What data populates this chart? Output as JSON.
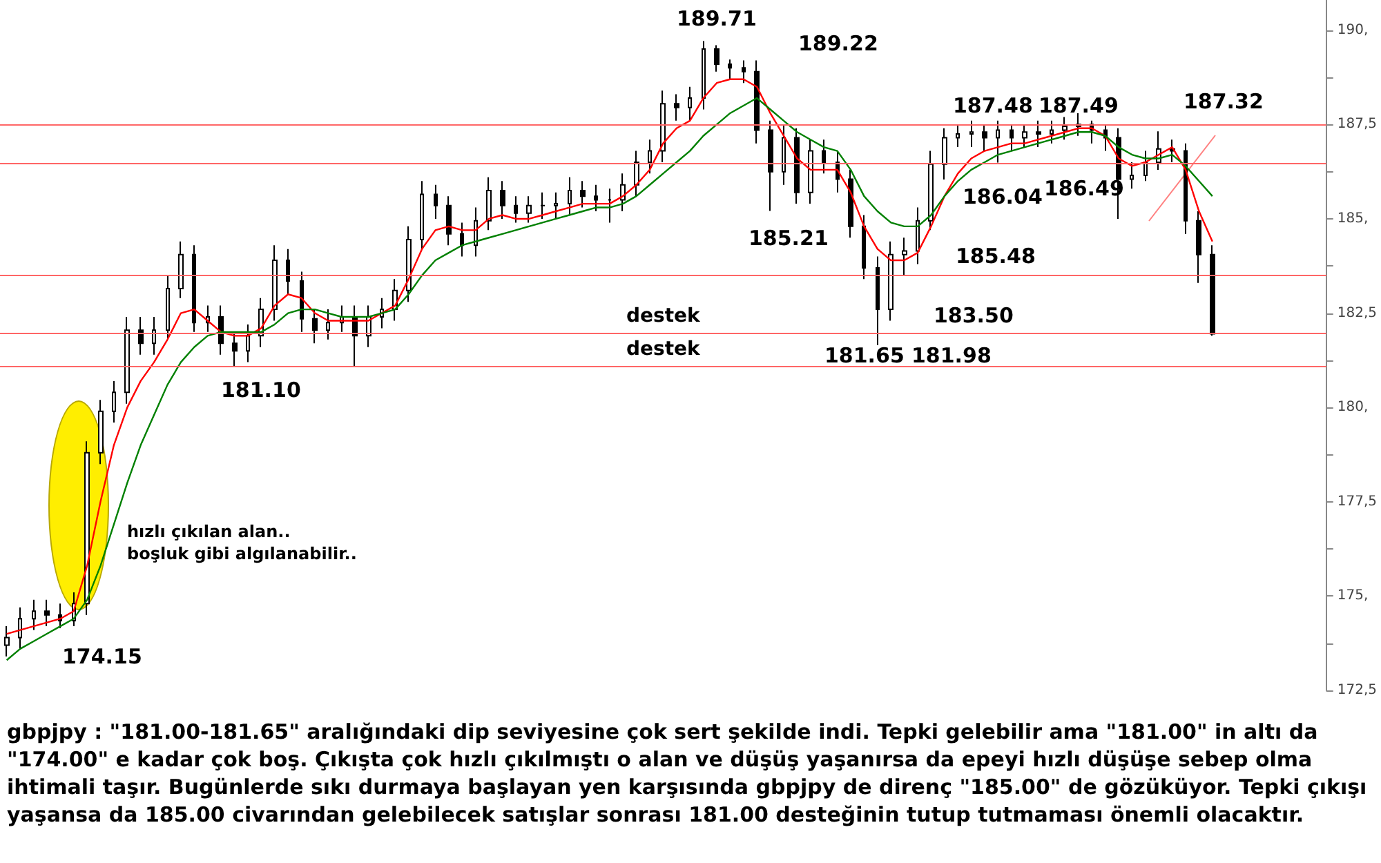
{
  "chart_data": {
    "type": "candlestick",
    "categories": [
      null,
      null,
      null,
      null,
      null,
      null,
      null,
      null,
      null,
      null,
      null,
      null,
      null,
      null,
      null,
      null,
      null,
      null,
      null,
      null,
      null,
      null,
      null,
      null,
      null,
      null,
      null,
      null,
      null,
      null,
      null,
      null,
      null,
      null,
      null,
      null,
      null,
      null,
      null,
      null,
      null,
      null,
      null,
      null,
      null,
      null,
      null,
      null,
      null,
      null,
      null,
      null,
      null,
      null,
      null,
      null,
      null,
      null,
      null,
      null,
      null,
      null,
      null,
      null,
      null,
      null,
      null,
      null,
      null,
      null,
      null,
      null,
      null,
      null,
      null,
      null,
      null,
      null,
      null,
      null,
      null,
      null,
      null,
      null,
      null,
      null,
      null,
      null,
      null,
      null,
      null,
      null,
      null,
      null,
      null,
      null,
      null,
      null,
      null
    ],
    "ohlc": [
      [
        173.7,
        174.2,
        173.4,
        173.9
      ],
      [
        173.9,
        174.7,
        173.6,
        174.4
      ],
      [
        174.4,
        174.9,
        174.1,
        174.6
      ],
      [
        174.6,
        174.9,
        174.2,
        174.5
      ],
      [
        174.5,
        174.8,
        174.15,
        174.35
      ],
      [
        174.35,
        175.1,
        174.2,
        174.8
      ],
      [
        174.8,
        179.1,
        174.5,
        178.8
      ],
      [
        178.8,
        180.2,
        178.5,
        179.9
      ],
      [
        179.9,
        180.7,
        179.6,
        180.4
      ],
      [
        180.4,
        182.4,
        180.1,
        182.05
      ],
      [
        182.05,
        182.4,
        181.4,
        181.7
      ],
      [
        181.7,
        182.4,
        181.4,
        182.05
      ],
      [
        182.05,
        183.5,
        181.8,
        183.15
      ],
      [
        183.15,
        184.4,
        182.9,
        184.05
      ],
      [
        184.05,
        184.3,
        182.0,
        182.25
      ],
      [
        182.25,
        182.7,
        182.0,
        182.4
      ],
      [
        182.4,
        182.7,
        181.4,
        181.7
      ],
      [
        181.7,
        182.0,
        181.1,
        181.5
      ],
      [
        181.5,
        182.2,
        181.2,
        181.9
      ],
      [
        181.9,
        182.9,
        181.6,
        182.6
      ],
      [
        182.6,
        184.3,
        182.3,
        183.9
      ],
      [
        183.9,
        184.2,
        183.0,
        183.35
      ],
      [
        183.35,
        183.6,
        182.0,
        182.35
      ],
      [
        182.35,
        182.6,
        181.7,
        182.05
      ],
      [
        182.05,
        182.6,
        181.8,
        182.25
      ],
      [
        182.25,
        182.7,
        182.0,
        182.4
      ],
      [
        182.4,
        182.7,
        181.1,
        181.9
      ],
      [
        181.9,
        182.7,
        181.6,
        182.4
      ],
      [
        182.4,
        182.9,
        182.1,
        182.6
      ],
      [
        182.6,
        183.4,
        182.3,
        183.1
      ],
      [
        183.1,
        184.8,
        182.8,
        184.45
      ],
      [
        184.45,
        186.0,
        184.2,
        185.65
      ],
      [
        185.65,
        185.9,
        185.0,
        185.35
      ],
      [
        185.35,
        185.6,
        184.3,
        184.6
      ],
      [
        184.6,
        184.9,
        184.0,
        184.3
      ],
      [
        184.3,
        185.3,
        184.0,
        184.95
      ],
      [
        184.95,
        186.1,
        184.7,
        185.75
      ],
      [
        185.75,
        186.0,
        185.0,
        185.35
      ],
      [
        185.35,
        185.6,
        184.9,
        185.15
      ],
      [
        185.15,
        185.6,
        184.9,
        185.35
      ],
      [
        185.35,
        185.7,
        185.0,
        185.35
      ],
      [
        185.35,
        185.7,
        185.0,
        185.4
      ],
      [
        185.4,
        186.1,
        185.1,
        185.75
      ],
      [
        185.75,
        186.0,
        185.3,
        185.6
      ],
      [
        185.6,
        185.9,
        185.2,
        185.5
      ],
      [
        185.5,
        185.8,
        184.9,
        185.5
      ],
      [
        185.5,
        186.2,
        185.2,
        185.9
      ],
      [
        185.9,
        186.8,
        185.6,
        186.5
      ],
      [
        186.5,
        187.1,
        186.2,
        186.8
      ],
      [
        186.8,
        188.4,
        186.5,
        188.05
      ],
      [
        188.05,
        188.3,
        187.6,
        187.95
      ],
      [
        187.95,
        188.5,
        187.6,
        188.2
      ],
      [
        188.2,
        189.71,
        187.9,
        189.5
      ],
      [
        189.5,
        189.6,
        188.9,
        189.1
      ],
      [
        189.1,
        189.22,
        188.7,
        189.0
      ],
      [
        189.0,
        189.2,
        188.6,
        188.9
      ],
      [
        188.9,
        189.2,
        187.0,
        187.35
      ],
      [
        187.35,
        187.6,
        185.21,
        186.25
      ],
      [
        186.25,
        187.5,
        185.9,
        187.15
      ],
      [
        187.15,
        187.4,
        185.4,
        185.7
      ],
      [
        185.7,
        187.1,
        185.4,
        186.8
      ],
      [
        186.8,
        187.1,
        186.2,
        186.5
      ],
      [
        186.5,
        186.8,
        185.7,
        186.05
      ],
      [
        186.05,
        186.3,
        184.5,
        184.8
      ],
      [
        184.8,
        185.1,
        183.4,
        183.7
      ],
      [
        183.7,
        184.0,
        181.65,
        182.6
      ],
      [
        182.6,
        184.4,
        182.3,
        184.05
      ],
      [
        184.05,
        184.5,
        183.5,
        184.15
      ],
      [
        184.15,
        185.3,
        183.8,
        184.95
      ],
      [
        184.95,
        186.8,
        184.7,
        186.45
      ],
      [
        186.45,
        187.4,
        186.04,
        187.15
      ],
      [
        187.15,
        187.48,
        186.9,
        187.25
      ],
      [
        187.25,
        187.6,
        186.9,
        187.3
      ],
      [
        187.3,
        187.5,
        186.8,
        187.15
      ],
      [
        187.15,
        187.6,
        186.49,
        187.35
      ],
      [
        187.35,
        187.5,
        186.8,
        187.15
      ],
      [
        187.15,
        187.49,
        186.9,
        187.3
      ],
      [
        187.3,
        187.6,
        186.9,
        187.25
      ],
      [
        187.25,
        187.6,
        187.0,
        187.35
      ],
      [
        187.35,
        187.7,
        187.1,
        187.45
      ],
      [
        187.45,
        187.8,
        187.2,
        187.5
      ],
      [
        187.5,
        187.6,
        187.0,
        187.35
      ],
      [
        187.35,
        187.5,
        186.8,
        187.15
      ],
      [
        187.15,
        187.4,
        185.0,
        186.05
      ],
      [
        186.05,
        186.5,
        185.8,
        186.15
      ],
      [
        186.15,
        186.8,
        186.0,
        186.5
      ],
      [
        186.5,
        187.32,
        186.3,
        186.85
      ],
      [
        186.85,
        187.1,
        186.5,
        186.8
      ],
      [
        186.8,
        187.0,
        184.6,
        184.95
      ],
      [
        184.95,
        185.2,
        183.3,
        184.05
      ],
      [
        184.05,
        184.3,
        181.9,
        181.95
      ],
      null,
      null,
      null,
      null,
      null,
      null,
      null,
      null
    ],
    "series": [
      {
        "type": "line",
        "color": "#ff0000",
        "values": [
          174.0,
          174.1,
          174.2,
          174.3,
          174.4,
          174.6,
          175.8,
          177.5,
          179.0,
          180.0,
          180.7,
          181.2,
          181.8,
          182.5,
          182.6,
          182.3,
          182.0,
          181.9,
          181.9,
          182.1,
          182.7,
          183.0,
          182.9,
          182.5,
          182.3,
          182.3,
          182.3,
          182.3,
          182.5,
          182.7,
          183.4,
          184.2,
          184.7,
          184.8,
          184.7,
          184.7,
          185.0,
          185.1,
          185.0,
          185.0,
          185.1,
          185.2,
          185.3,
          185.4,
          185.4,
          185.4,
          185.6,
          185.9,
          186.3,
          187.0,
          187.4,
          187.6,
          188.2,
          188.6,
          188.7,
          188.7,
          188.5,
          187.8,
          187.2,
          186.6,
          186.3,
          186.3,
          186.3,
          185.7,
          184.8,
          184.2,
          183.9,
          183.9,
          184.1,
          184.8,
          185.6,
          186.2,
          186.6,
          186.8,
          186.9,
          187.0,
          187.0,
          187.1,
          187.2,
          187.3,
          187.4,
          187.4,
          187.2,
          186.6,
          186.4,
          186.5,
          186.7,
          186.9,
          186.3,
          185.2,
          184.4,
          null,
          null,
          null,
          null,
          null,
          null,
          null,
          null
        ]
      },
      {
        "type": "line",
        "color": "#008000",
        "values": [
          173.3,
          173.6,
          173.8,
          174.0,
          174.2,
          174.4,
          174.9,
          175.8,
          176.9,
          178.0,
          179.0,
          179.8,
          180.6,
          181.2,
          181.6,
          181.9,
          182.0,
          182.0,
          182.0,
          182.0,
          182.2,
          182.5,
          182.6,
          182.6,
          182.5,
          182.4,
          182.4,
          182.4,
          182.5,
          182.6,
          183.0,
          183.5,
          183.9,
          184.1,
          184.3,
          184.4,
          184.5,
          184.6,
          184.7,
          184.8,
          184.9,
          185.0,
          185.1,
          185.2,
          185.3,
          185.3,
          185.4,
          185.6,
          185.9,
          186.2,
          186.5,
          186.8,
          187.2,
          187.5,
          187.8,
          188.0,
          188.2,
          187.9,
          187.6,
          187.3,
          187.1,
          186.9,
          186.8,
          186.3,
          185.6,
          185.2,
          184.9,
          184.8,
          184.8,
          185.1,
          185.6,
          186.0,
          186.3,
          186.5,
          186.7,
          186.8,
          186.9,
          187.0,
          187.1,
          187.2,
          187.3,
          187.3,
          187.2,
          186.9,
          186.7,
          186.6,
          186.6,
          186.7,
          186.4,
          186.0,
          185.6,
          null,
          null,
          null,
          null,
          null,
          null,
          null,
          null
        ]
      }
    ],
    "marker": "none",
    "ylim": [
      172.5,
      190.8
    ],
    "yticks": [
      {
        "value": 172.5,
        "label": "172,5"
      },
      {
        "value": 173.75,
        "label": null
      },
      {
        "value": 175,
        "label": "175,"
      },
      {
        "value": 176.25,
        "label": null
      },
      {
        "value": 177.5,
        "label": "177,5"
      },
      {
        "value": 178.75,
        "label": null
      },
      {
        "value": 180,
        "label": "180,"
      },
      {
        "value": 181.25,
        "label": null
      },
      {
        "value": 182.5,
        "label": "182,5"
      },
      {
        "value": 183.75,
        "label": null
      },
      {
        "value": 185,
        "label": "185,"
      },
      {
        "value": 186.25,
        "label": null
      },
      {
        "value": 187.5,
        "label": "187,5"
      },
      {
        "value": 188.75,
        "label": null
      },
      {
        "value": 190,
        "label": "190,"
      }
    ],
    "ref_lines": [
      {
        "axis": "y",
        "value": 181.1,
        "label": "destek",
        "color": "#ff6666"
      },
      {
        "axis": "y",
        "value": 181.98,
        "label": "destek",
        "color": "#ff6666"
      },
      {
        "axis": "y",
        "value": 183.5,
        "color": "#ff6666"
      },
      {
        "axis": "y",
        "value": 186.49,
        "color": "#ff6666"
      },
      {
        "axis": "y",
        "value": 187.48,
        "color": "#ff6666"
      }
    ],
    "annotations": [
      "189.71",
      "189.22",
      "187.48",
      "187.49",
      "187.32",
      "186.04",
      "186.49",
      "185.21",
      "185.48",
      "183.50",
      "181.65",
      "181.98",
      "181.10",
      "174.15",
      "hızlı çıkılan alan..\nboşluk gibi algılanabilir..",
      "gbpjpy : \"181.00-181.65\" aralığındaki dip seviyesine çok sert şekilde indi.  Tepki gelebilir ama \"181.00\" in altı da \"174.00\" e kadar çok boş. Çıkışta çok hızlı çıkılmıştı o alan ve düşüş yaşanırsa da epeyi hızlı düşüşe sebep olma ihtimali taşır. Bugünlerde sıkı durmaya başlayan yen karşısında gbpjpy de direnç \"185.00\" de gözüküyor. Tepki çıkışı yaşansa da 185.00 civarından gelebilecek satışlar sonrası 181.00 desteğinin tutup tutmaması önemli olacaktır."
    ]
  }
}
